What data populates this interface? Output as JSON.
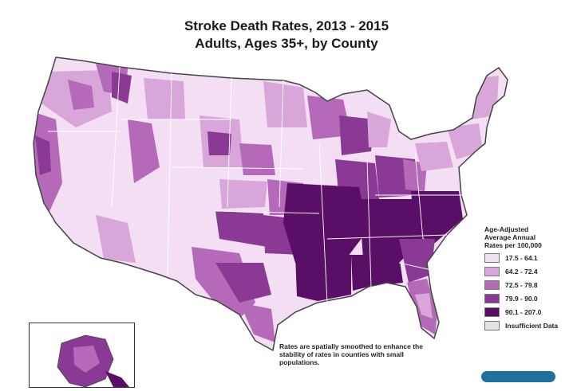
{
  "title": {
    "line1": "Stroke Death Rates, 2013 - 2015",
    "line2": "Adults, Ages 35+, by County"
  },
  "legend": {
    "title_lines": [
      "Age-Adjusted",
      "Average Annual",
      "Rates per 100,000"
    ],
    "items": [
      {
        "label": "17.5 - 64.1",
        "color": "#f3def3"
      },
      {
        "label": "64.2 - 72.4",
        "color": "#d9a6da"
      },
      {
        "label": "72.5 - 79.8",
        "color": "#b46ab8"
      },
      {
        "label": "79.9 - 90.0",
        "color": "#8a3a94"
      },
      {
        "label": "90.1 - 207.0",
        "color": "#5a0f66"
      },
      {
        "label": "Insufficient Data",
        "color": "#e4e4e4"
      }
    ]
  },
  "note": "Rates are spatially smoothed to enhance the stability of rates in counties with small populations.",
  "colors": {
    "border": "#444444",
    "logo": "#1f6fa0"
  }
}
